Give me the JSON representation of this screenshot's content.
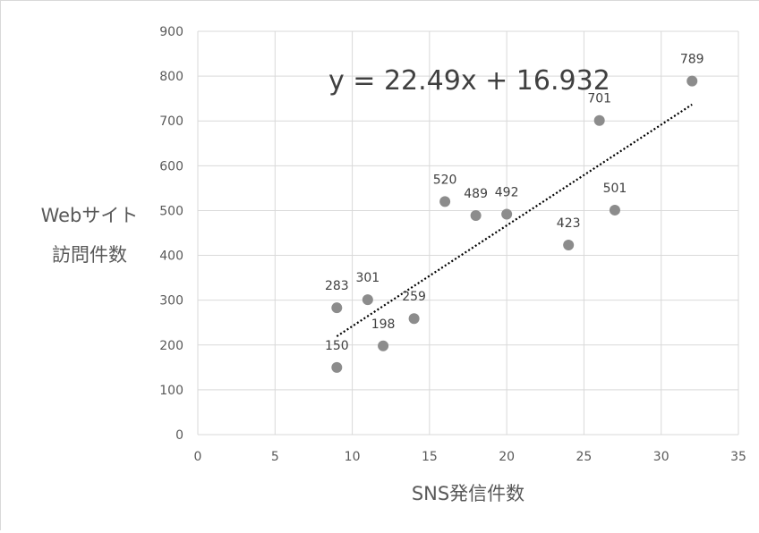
{
  "chart_data": {
    "type": "scatter",
    "title": "",
    "xlabel": "SNS発信件数",
    "ylabel": [
      "Webサイト",
      "訪問件数"
    ],
    "xlim": [
      0,
      35
    ],
    "ylim": [
      0,
      900
    ],
    "x_ticks": [
      0,
      5,
      10,
      15,
      20,
      25,
      30,
      35
    ],
    "y_ticks": [
      0,
      100,
      200,
      300,
      400,
      500,
      600,
      700,
      800,
      900
    ],
    "grid": true,
    "legend": "none",
    "point_color": "#8c8c8c",
    "trendline": {
      "type": "linear",
      "slope": 22.49,
      "intercept": 16.932,
      "x_range": [
        9,
        32
      ],
      "style": "dotted",
      "color": "#000000",
      "equation_label": "y = 22.49x + 16.932"
    },
    "points": [
      {
        "x": 9,
        "y": 150,
        "label": "150"
      },
      {
        "x": 9,
        "y": 283,
        "label": "283"
      },
      {
        "x": 11,
        "y": 301,
        "label": "301"
      },
      {
        "x": 12,
        "y": 198,
        "label": "198"
      },
      {
        "x": 14,
        "y": 259,
        "label": "259"
      },
      {
        "x": 16,
        "y": 520,
        "label": "520"
      },
      {
        "x": 18,
        "y": 489,
        "label": "489"
      },
      {
        "x": 20,
        "y": 492,
        "label": "492"
      },
      {
        "x": 24,
        "y": 423,
        "label": "423"
      },
      {
        "x": 26,
        "y": 701,
        "label": "701"
      },
      {
        "x": 27,
        "y": 501,
        "label": "501"
      },
      {
        "x": 32,
        "y": 789,
        "label": "789"
      }
    ]
  }
}
